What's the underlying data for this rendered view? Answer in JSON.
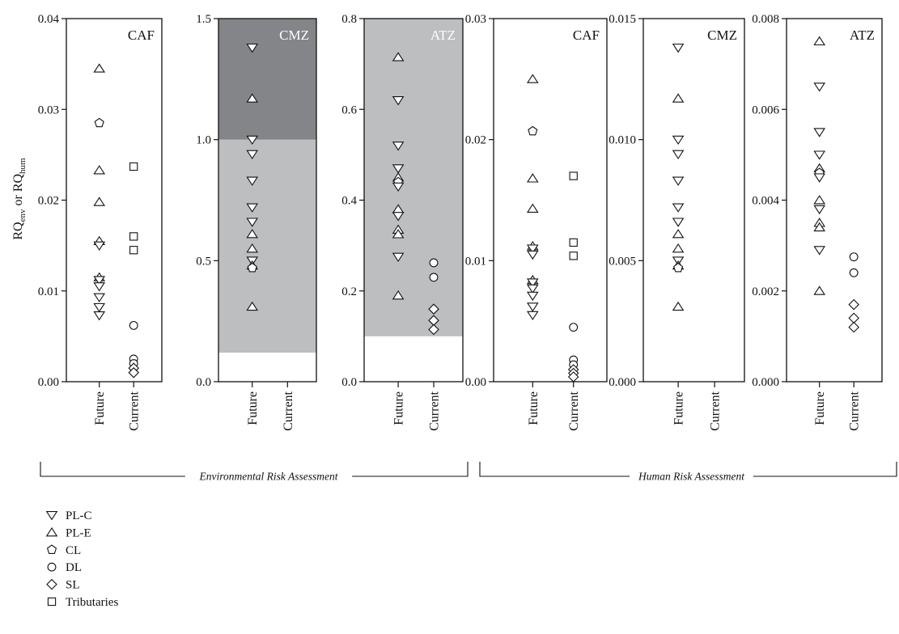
{
  "chart_data": {
    "type": "scatter",
    "y_axis_label": {
      "main": "RQ",
      "sub1": "env",
      "mid": " or RQ",
      "sub2": "hum"
    },
    "categories": [
      "Future",
      "Current"
    ],
    "panels": [
      {
        "title": "CAF",
        "ylim": [
          0,
          0.04
        ],
        "ticks": [
          "0.00",
          "0.01",
          "0.02",
          "0.03",
          "0.04"
        ],
        "bands": [],
        "future": [
          {
            "s": "PL-E",
            "v": 0.0345
          },
          {
            "s": "CL",
            "v": 0.0285
          },
          {
            "s": "PL-E",
            "v": 0.0233
          },
          {
            "s": "PL-E",
            "v": 0.0198
          },
          {
            "s": "PL-E",
            "v": 0.0155
          },
          {
            "s": "PL-C",
            "v": 0.015
          },
          {
            "s": "PL-E",
            "v": 0.0115
          },
          {
            "s": "PL-C",
            "v": 0.0112
          },
          {
            "s": "PL-C",
            "v": 0.0105
          },
          {
            "s": "PL-C",
            "v": 0.0093
          },
          {
            "s": "PL-C",
            "v": 0.0082
          },
          {
            "s": "PL-C",
            "v": 0.0073
          }
        ],
        "current": [
          {
            "s": "Tributaries",
            "v": 0.0237
          },
          {
            "s": "Tributaries",
            "v": 0.016
          },
          {
            "s": "Tributaries",
            "v": 0.0145
          },
          {
            "s": "DL",
            "v": 0.0062
          },
          {
            "s": "DL",
            "v": 0.0025
          },
          {
            "s": "DL",
            "v": 0.002
          },
          {
            "s": "SL",
            "v": 0.0015
          },
          {
            "s": "SL",
            "v": 0.001
          }
        ]
      },
      {
        "title": "CMZ",
        "ylim": [
          0,
          1.5
        ],
        "ticks": [
          "0.0",
          "0.5",
          "1.0",
          "1.5"
        ],
        "bands": [
          {
            "from": 0.12,
            "to": 1.0,
            "color": "#bdbec0"
          },
          {
            "from": 1.0,
            "to": 1.5,
            "color": "#848589"
          }
        ],
        "future": [
          {
            "s": "PL-C",
            "v": 1.38
          },
          {
            "s": "PL-E",
            "v": 1.17
          },
          {
            "s": "PL-C",
            "v": 1.0
          },
          {
            "s": "PL-C",
            "v": 0.94
          },
          {
            "s": "PL-C",
            "v": 0.83
          },
          {
            "s": "PL-C",
            "v": 0.72
          },
          {
            "s": "PL-C",
            "v": 0.66
          },
          {
            "s": "PL-E",
            "v": 0.61
          },
          {
            "s": "PL-E",
            "v": 0.55
          },
          {
            "s": "PL-C",
            "v": 0.5
          },
          {
            "s": "PL-E",
            "v": 0.48
          },
          {
            "s": "CL",
            "v": 0.47
          },
          {
            "s": "PL-E",
            "v": 0.31
          }
        ],
        "current": []
      },
      {
        "title": "ATZ",
        "ylim": [
          0,
          0.8
        ],
        "ticks": [
          "0.0",
          "0.2",
          "0.4",
          "0.6",
          "0.8"
        ],
        "bands": [
          {
            "from": 0.1,
            "to": 0.8,
            "color": "#bdbec0"
          }
        ],
        "future": [
          {
            "s": "PL-E",
            "v": 0.715
          },
          {
            "s": "PL-C",
            "v": 0.62
          },
          {
            "s": "PL-C",
            "v": 0.52
          },
          {
            "s": "PL-C",
            "v": 0.47
          },
          {
            "s": "PL-E",
            "v": 0.45
          },
          {
            "s": "CL",
            "v": 0.44
          },
          {
            "s": "PL-C",
            "v": 0.43
          },
          {
            "s": "PL-E",
            "v": 0.38
          },
          {
            "s": "PL-C",
            "v": 0.365
          },
          {
            "s": "PL-E",
            "v": 0.335
          },
          {
            "s": "PL-E",
            "v": 0.325
          },
          {
            "s": "PL-C",
            "v": 0.275
          },
          {
            "s": "PL-E",
            "v": 0.19
          }
        ],
        "current": [
          {
            "s": "DL",
            "v": 0.262
          },
          {
            "s": "DL",
            "v": 0.23
          },
          {
            "s": "SL",
            "v": 0.16
          },
          {
            "s": "SL",
            "v": 0.135
          },
          {
            "s": "SL",
            "v": 0.115
          }
        ]
      },
      {
        "title": "CAF",
        "ylim": [
          0,
          0.03
        ],
        "ticks": [
          "0.00",
          "0.01",
          "0.02",
          "0.03"
        ],
        "bands": [],
        "future": [
          {
            "s": "PL-E",
            "v": 0.025
          },
          {
            "s": "CL",
            "v": 0.0207
          },
          {
            "s": "PL-E",
            "v": 0.0168
          },
          {
            "s": "PL-E",
            "v": 0.0143
          },
          {
            "s": "PL-E",
            "v": 0.0112
          },
          {
            "s": "PL-C",
            "v": 0.011
          },
          {
            "s": "PL-C",
            "v": 0.0105
          },
          {
            "s": "PL-E",
            "v": 0.0084
          },
          {
            "s": "PL-C",
            "v": 0.0082
          },
          {
            "s": "PL-C",
            "v": 0.0077
          },
          {
            "s": "PL-C",
            "v": 0.0071
          },
          {
            "s": "PL-C",
            "v": 0.0062
          },
          {
            "s": "PL-C",
            "v": 0.0055
          }
        ],
        "current": [
          {
            "s": "Tributaries",
            "v": 0.017
          },
          {
            "s": "Tributaries",
            "v": 0.0115
          },
          {
            "s": "Tributaries",
            "v": 0.0104
          },
          {
            "s": "DL",
            "v": 0.0045
          },
          {
            "s": "DL",
            "v": 0.0018
          },
          {
            "s": "DL",
            "v": 0.0014
          },
          {
            "s": "SL",
            "v": 0.001
          },
          {
            "s": "SL",
            "v": 0.0007
          },
          {
            "s": "SL",
            "v": 0.0004
          }
        ]
      },
      {
        "title": "CMZ",
        "ylim": [
          0,
          0.015
        ],
        "ticks": [
          "0.000",
          "0.005",
          "0.010",
          "0.015"
        ],
        "bands": [],
        "future": [
          {
            "s": "PL-C",
            "v": 0.0138
          },
          {
            "s": "PL-E",
            "v": 0.0117
          },
          {
            "s": "PL-C",
            "v": 0.01
          },
          {
            "s": "PL-C",
            "v": 0.0094
          },
          {
            "s": "PL-C",
            "v": 0.0083
          },
          {
            "s": "PL-C",
            "v": 0.0072
          },
          {
            "s": "PL-C",
            "v": 0.0066
          },
          {
            "s": "PL-E",
            "v": 0.0061
          },
          {
            "s": "PL-E",
            "v": 0.0055
          },
          {
            "s": "PL-C",
            "v": 0.005
          },
          {
            "s": "PL-E",
            "v": 0.0048
          },
          {
            "s": "CL",
            "v": 0.0047
          },
          {
            "s": "PL-E",
            "v": 0.0031
          }
        ],
        "current": []
      },
      {
        "title": "ATZ",
        "ylim": [
          0,
          0.008
        ],
        "ticks": [
          "0.000",
          "0.002",
          "0.004",
          "0.006",
          "0.008"
        ],
        "bands": [],
        "future": [
          {
            "s": "PL-E",
            "v": 0.0075
          },
          {
            "s": "PL-C",
            "v": 0.0065
          },
          {
            "s": "PL-C",
            "v": 0.0055
          },
          {
            "s": "PL-C",
            "v": 0.005
          },
          {
            "s": "PL-E",
            "v": 0.0047
          },
          {
            "s": "CL",
            "v": 0.0046
          },
          {
            "s": "PL-C",
            "v": 0.0045
          },
          {
            "s": "PL-E",
            "v": 0.004
          },
          {
            "s": "PL-C",
            "v": 0.0038
          },
          {
            "s": "PL-E",
            "v": 0.0035
          },
          {
            "s": "PL-E",
            "v": 0.0034
          },
          {
            "s": "PL-C",
            "v": 0.0029
          },
          {
            "s": "PL-E",
            "v": 0.002
          }
        ],
        "current": [
          {
            "s": "DL",
            "v": 0.00275
          },
          {
            "s": "DL",
            "v": 0.0024
          },
          {
            "s": "SL",
            "v": 0.0017
          },
          {
            "s": "SL",
            "v": 0.0014
          },
          {
            "s": "SL",
            "v": 0.0012
          }
        ]
      }
    ],
    "groups": [
      {
        "label": "Environmental Risk Assessment",
        "panels": [
          0,
          1,
          2
        ]
      },
      {
        "label": "Human Risk Assessment",
        "panels": [
          3,
          4,
          5
        ]
      }
    ],
    "legend": [
      {
        "symbol": "PL-C",
        "label": "PL-C"
      },
      {
        "symbol": "PL-E",
        "label": "PL-E"
      },
      {
        "symbol": "CL",
        "label": "CL"
      },
      {
        "symbol": "DL",
        "label": "DL"
      },
      {
        "symbol": "SL",
        "label": "SL"
      },
      {
        "symbol": "Tributaries",
        "label": "Tributaries"
      }
    ],
    "legend_placement": "bottom-left",
    "grid": false
  }
}
